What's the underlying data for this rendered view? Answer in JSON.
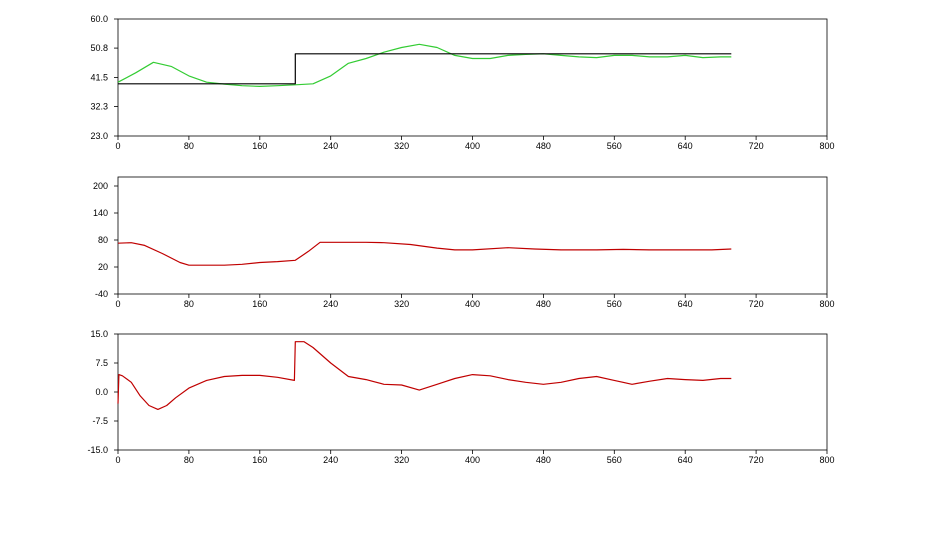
{
  "chart_data": [
    {
      "type": "line",
      "title": "",
      "xlabel": "",
      "ylabel": "",
      "xlim": [
        0,
        800
      ],
      "ylim": [
        23.0,
        60.0
      ],
      "x_ticks": [
        0,
        80,
        160,
        240,
        320,
        400,
        480,
        560,
        640,
        720,
        800
      ],
      "y_ticks": [
        23.0,
        32.3,
        41.5,
        50.8,
        60.0
      ],
      "grid": false,
      "series": [
        {
          "color": "#33cc33",
          "x": [
            0,
            20,
            40,
            60,
            80,
            100,
            120,
            140,
            160,
            180,
            200,
            220,
            240,
            260,
            280,
            300,
            320,
            340,
            360,
            380,
            400,
            420,
            440,
            460,
            480,
            500,
            520,
            540,
            560,
            580,
            600,
            620,
            640,
            660,
            680,
            692
          ],
          "y": [
            40.0,
            43.0,
            46.3,
            45.0,
            42.0,
            40.0,
            39.4,
            38.9,
            38.7,
            38.9,
            39.2,
            39.5,
            42.0,
            46.0,
            47.5,
            49.5,
            51.0,
            52.0,
            51.0,
            48.5,
            47.5,
            47.5,
            48.5,
            48.8,
            49.0,
            48.5,
            48.0,
            47.8,
            48.5,
            48.5,
            48.0,
            48.0,
            48.5,
            47.8,
            48.0,
            48.0
          ]
        },
        {
          "color": "#000000",
          "x": [
            0,
            200,
            200,
            692
          ],
          "y": [
            39.5,
            39.5,
            49.0,
            49.0
          ]
        }
      ]
    },
    {
      "type": "line",
      "title": "",
      "xlabel": "",
      "ylabel": "",
      "xlim": [
        0,
        800
      ],
      "ylim": [
        -40,
        220
      ],
      "x_ticks": [
        0,
        80,
        160,
        240,
        320,
        400,
        480,
        560,
        640,
        720,
        800
      ],
      "y_ticks": [
        -40,
        20,
        80,
        140,
        200
      ],
      "grid": false,
      "series": [
        {
          "color": "#c00000",
          "x": [
            0,
            15,
            30,
            50,
            70,
            80,
            100,
            120,
            140,
            160,
            180,
            200,
            215,
            228,
            250,
            280,
            300,
            330,
            360,
            380,
            400,
            440,
            470,
            500,
            540,
            570,
            600,
            640,
            670,
            692
          ],
          "y": [
            73,
            74,
            68,
            50,
            30,
            24,
            24,
            24,
            26,
            30,
            32,
            35,
            55,
            75,
            75,
            75,
            74,
            70,
            62,
            58,
            58,
            63,
            60,
            58,
            58,
            59,
            58,
            58,
            58,
            60
          ]
        }
      ]
    },
    {
      "type": "line",
      "title": "",
      "xlabel": "",
      "ylabel": "",
      "xlim": [
        0,
        800
      ],
      "ylim": [
        -15.0,
        15.0
      ],
      "x_ticks": [
        0,
        80,
        160,
        240,
        320,
        400,
        480,
        560,
        640,
        720,
        800
      ],
      "y_ticks": [
        -15.0,
        -7.5,
        0.0,
        7.5,
        15.0
      ],
      "grid": false,
      "series": [
        {
          "color": "#c00000",
          "x": [
            0,
            1,
            5,
            15,
            25,
            35,
            45,
            55,
            65,
            80,
            100,
            120,
            140,
            160,
            180,
            199,
            200,
            210,
            220,
            240,
            260,
            280,
            300,
            320,
            340,
            360,
            380,
            400,
            420,
            440,
            460,
            480,
            500,
            520,
            540,
            560,
            580,
            600,
            620,
            640,
            660,
            680,
            692
          ],
          "y": [
            -3.0,
            4.5,
            4.2,
            2.5,
            -1.0,
            -3.5,
            -4.5,
            -3.5,
            -1.5,
            1.0,
            3.0,
            4.0,
            4.3,
            4.3,
            3.8,
            3.0,
            13.0,
            13.0,
            11.5,
            7.5,
            4.0,
            3.2,
            2.0,
            1.8,
            0.5,
            2.0,
            3.5,
            4.5,
            4.2,
            3.2,
            2.5,
            2.0,
            2.5,
            3.5,
            4.0,
            3.0,
            2.0,
            2.8,
            3.5,
            3.2,
            3.0,
            3.5,
            3.5
          ]
        }
      ]
    }
  ]
}
